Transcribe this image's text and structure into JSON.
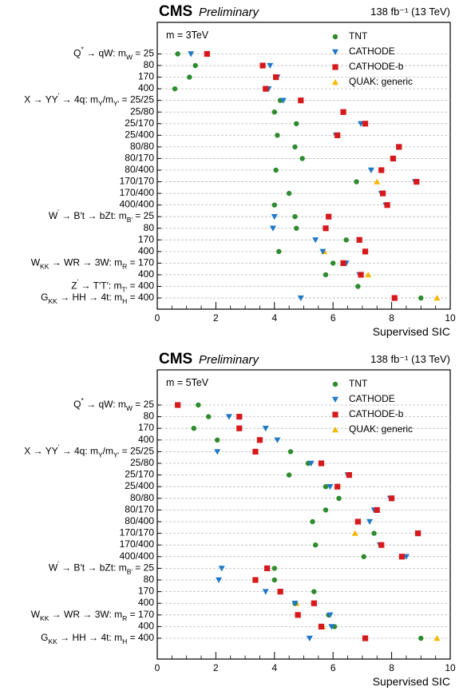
{
  "header": {
    "cms": "CMS",
    "preliminary": "Preliminary",
    "lumi": "138 fb⁻¹ (13 TeV)"
  },
  "colors": {
    "TNT": "#2e8b2e",
    "CATHODE": "#1f78c8",
    "CATHODE-b": "#d7191c",
    "QUAK: generic": "#f5b800"
  },
  "legend": {
    "position": "top-right",
    "entries": [
      {
        "name": "TNT",
        "marker": "circle"
      },
      {
        "name": "CATHODE",
        "marker": "triangle-down"
      },
      {
        "name": "CATHODE-b",
        "marker": "square"
      },
      {
        "name": "QUAK: generic",
        "marker": "triangle-up"
      }
    ]
  },
  "chart_data": [
    {
      "type": "scatter",
      "annotation": "m = 3TeV",
      "xlabel": "Supervised SIC",
      "xlim": [
        0,
        10
      ],
      "xticks": [
        0,
        2,
        4,
        6,
        8,
        10
      ],
      "grid": "horizontal dashed",
      "categories": [
        "Q* → qW: m_W = 25",
        "80",
        "170",
        "400",
        "X → YY' → 4q: m_Y/m_Y' = 25/25",
        "25/80",
        "25/170",
        "25/400",
        "80/80",
        "80/170",
        "80/400",
        "170/170",
        "170/400",
        "400/400",
        "W' → B't → bZt: m_B' = 25",
        "80",
        "170",
        "400",
        "W_KK → WR → 3W: m_R = 170",
        "400",
        "Z' → T'T': m_T' = 400",
        "G_KK → HH → 4t: m_H = 400"
      ],
      "labels": [
        {
          "main": "Q",
          "sup": "*",
          "rest": " → qW: m",
          "sub": "W",
          "tail": " = 25"
        },
        {
          "main": "80"
        },
        {
          "main": "170"
        },
        {
          "main": "400"
        },
        {
          "main": "X → YY",
          "sup": "′",
          "rest": " → 4q: m",
          "sub": "Y",
          "rest2": "/m",
          "sub2": "Y′",
          "tail": " = 25/25"
        },
        {
          "main": "25/80"
        },
        {
          "main": "25/170"
        },
        {
          "main": "25/400"
        },
        {
          "main": "80/80"
        },
        {
          "main": "80/170"
        },
        {
          "main": "80/400"
        },
        {
          "main": "170/170"
        },
        {
          "main": "170/400"
        },
        {
          "main": "400/400"
        },
        {
          "main": "W",
          "sup": "′",
          "rest": " → B′t → bZt: m",
          "sub": "B′",
          "tail": " = 25"
        },
        {
          "main": "80"
        },
        {
          "main": "170"
        },
        {
          "main": "400"
        },
        {
          "main": "W",
          "sub": "KK",
          "rest": " → WR → 3W: m",
          "sub2": "R",
          "tail": " = 170"
        },
        {
          "main": "400"
        },
        {
          "main": "Z",
          "sup": "′",
          "rest": " → T′T′: m",
          "sub": "T′",
          "tail": " = 400"
        },
        {
          "main": "G",
          "sub": "KK",
          "rest": " → HH → 4t: m",
          "sub2": "H",
          "tail": " = 400"
        }
      ],
      "series": [
        {
          "name": "TNT",
          "values": [
            0.7,
            1.3,
            1.1,
            0.6,
            4.2,
            4.0,
            4.75,
            4.1,
            4.7,
            4.95,
            4.05,
            6.8,
            4.5,
            4.0,
            4.7,
            4.75,
            6.45,
            4.15,
            6.0,
            5.75,
            6.85,
            9.0
          ]
        },
        {
          "name": "CATHODE",
          "values": [
            1.15,
            3.85,
            4.1,
            3.8,
            4.3,
            6.35,
            6.95,
            6.1,
            8.25,
            8.05,
            7.3,
            8.8,
            7.65,
            7.8,
            4.0,
            3.95,
            5.4,
            5.65,
            6.45,
            6.9,
            null,
            4.9
          ]
        },
        {
          "name": "CATHODE-b",
          "values": [
            1.7,
            3.6,
            4.05,
            3.7,
            4.9,
            6.35,
            7.1,
            6.15,
            8.25,
            8.05,
            7.65,
            8.85,
            7.7,
            7.85,
            5.85,
            5.75,
            6.9,
            7.1,
            6.35,
            6.95,
            null,
            8.1
          ]
        },
        {
          "name": "QUAK: generic",
          "values": [
            null,
            null,
            null,
            null,
            null,
            null,
            null,
            null,
            null,
            null,
            null,
            7.5,
            null,
            null,
            null,
            null,
            null,
            5.7,
            null,
            7.2,
            null,
            9.55
          ]
        }
      ]
    },
    {
      "type": "scatter",
      "annotation": "m = 5TeV",
      "xlabel": "Supervised SIC",
      "xlim": [
        0,
        10
      ],
      "xticks": [
        0,
        2,
        4,
        6,
        8,
        10
      ],
      "grid": "horizontal dashed",
      "categories": [
        "Q* → qW: m_W = 25",
        "80",
        "170",
        "400",
        "X → YY' → 4q: m_Y/m_Y' = 25/25",
        "25/80",
        "25/170",
        "25/400",
        "80/80",
        "80/170",
        "80/400",
        "170/170",
        "170/400",
        "400/400",
        "W' → B't → bZt: m_B' = 25",
        "80",
        "170",
        "400",
        "W_KK → WR → 3W: m_R = 170",
        "400",
        "G_KK → HH → 4t: m_H = 400"
      ],
      "labels": [
        {
          "main": "Q",
          "sup": "*",
          "rest": " → qW: m",
          "sub": "W",
          "tail": " = 25"
        },
        {
          "main": "80"
        },
        {
          "main": "170"
        },
        {
          "main": "400"
        },
        {
          "main": "X → YY",
          "sup": "′",
          "rest": " → 4q: m",
          "sub": "Y",
          "rest2": "/m",
          "sub2": "Y′",
          "tail": " = 25/25"
        },
        {
          "main": "25/80"
        },
        {
          "main": "25/170"
        },
        {
          "main": "25/400"
        },
        {
          "main": "80/80"
        },
        {
          "main": "80/170"
        },
        {
          "main": "80/400"
        },
        {
          "main": "170/170"
        },
        {
          "main": "170/400"
        },
        {
          "main": "400/400"
        },
        {
          "main": "W",
          "sup": "′",
          "rest": " → B′t → bZt: m",
          "sub": "B′",
          "tail": " = 25"
        },
        {
          "main": "80"
        },
        {
          "main": "170"
        },
        {
          "main": "400"
        },
        {
          "main": "W",
          "sub": "KK",
          "rest": " → WR → 3W: m",
          "sub2": "R",
          "tail": " = 170"
        },
        {
          "main": "400"
        },
        {
          "main": "G",
          "sub": "KK",
          "rest": " → HH → 4t: m",
          "sub2": "H",
          "tail": " = 400"
        }
      ],
      "series": [
        {
          "name": "TNT",
          "values": [
            1.4,
            1.75,
            1.25,
            2.05,
            4.55,
            5.15,
            4.5,
            5.75,
            6.2,
            5.75,
            5.3,
            7.4,
            5.4,
            7.05,
            4.0,
            4.0,
            5.35,
            4.7,
            5.85,
            6.05,
            9.0
          ]
        },
        {
          "name": "CATHODE",
          "values": [
            null,
            2.45,
            3.7,
            4.1,
            2.05,
            5.25,
            6.5,
            5.9,
            7.95,
            7.4,
            7.25,
            8.9,
            7.6,
            8.5,
            2.2,
            2.1,
            3.7,
            4.7,
            5.9,
            5.95,
            5.2
          ]
        },
        {
          "name": "CATHODE-b",
          "values": [
            0.7,
            2.8,
            2.8,
            3.5,
            3.35,
            5.6,
            6.55,
            6.15,
            8.0,
            7.5,
            6.85,
            8.9,
            7.65,
            8.35,
            3.75,
            3.35,
            4.2,
            5.35,
            4.8,
            5.6,
            7.1
          ]
        },
        {
          "name": "QUAK: generic",
          "values": [
            null,
            null,
            null,
            null,
            null,
            null,
            null,
            null,
            null,
            null,
            null,
            6.75,
            null,
            null,
            null,
            null,
            null,
            4.75,
            null,
            5.65,
            9.55
          ]
        }
      ]
    }
  ],
  "panels": [
    {
      "id": "top"
    },
    {
      "id": "bottom"
    }
  ]
}
